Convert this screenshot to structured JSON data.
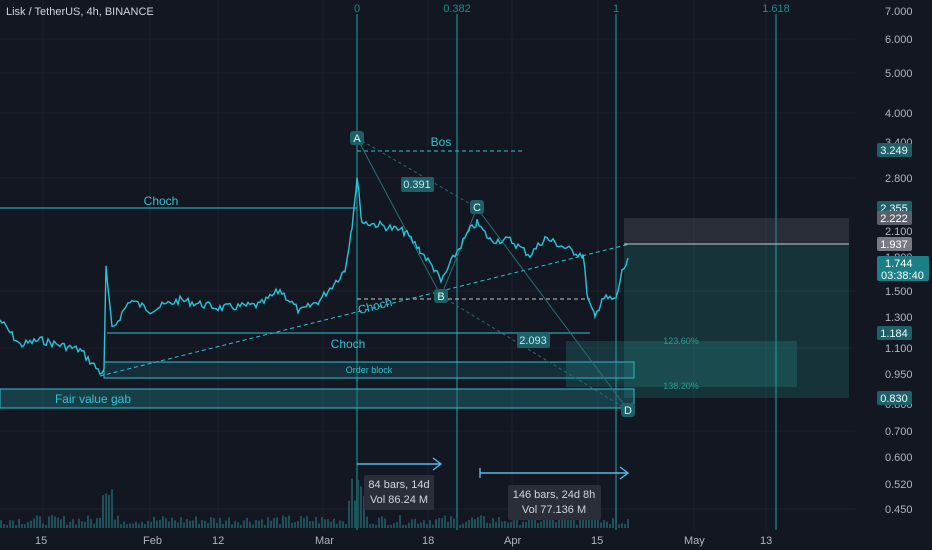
{
  "header": {
    "title": "Lisk / TetherUS, 4h, BINANCE"
  },
  "y_axis": {
    "ticks": [
      "7.000",
      "6.000",
      "5.000",
      "4.000",
      "3.400",
      "2.800",
      "2.100",
      "1.800",
      "1.500",
      "1.300",
      "1.100",
      "0.950",
      "0.800",
      "0.700",
      "0.600",
      "0.520",
      "0.450"
    ]
  },
  "x_axis": {
    "ticks": [
      "15",
      "Feb",
      "12",
      "Mar",
      "18",
      "Apr",
      "15",
      "May",
      "13"
    ]
  },
  "fib": {
    "levels": [
      "0",
      "0.382",
      "1",
      "1.618"
    ]
  },
  "price_tags": {
    "bos_level": "3.249",
    "tp1": "2.355",
    "tp_zone": "2.222",
    "last_close": "1.937",
    "current": "1.744",
    "countdown": "03:38:40",
    "support": "1.184",
    "fvg": "0.830"
  },
  "annotations": {
    "bos": "Bos",
    "choch_top": "Choch",
    "choch_diag": "Choch",
    "choch_low": "Choch",
    "order_block": "Order block",
    "fvg": "Fair value gab",
    "point_a": "A",
    "point_b": "B",
    "point_c": "C",
    "point_d": "D",
    "ratio_bc": "0.391",
    "ratio_cd": "2.093",
    "ext_1": "123.60%",
    "ext_2": "138.20%"
  },
  "measures": [
    {
      "bars": "84 bars, 14d",
      "vol": "Vol 86.24 M"
    },
    {
      "bars": "146 bars, 24d 8h",
      "vol": "Vol 77.136 M"
    }
  ],
  "colors": {
    "background": "#131722",
    "accent": "#2ec4d6",
    "candle": "#26c6da",
    "grid": "#1f2433"
  }
}
